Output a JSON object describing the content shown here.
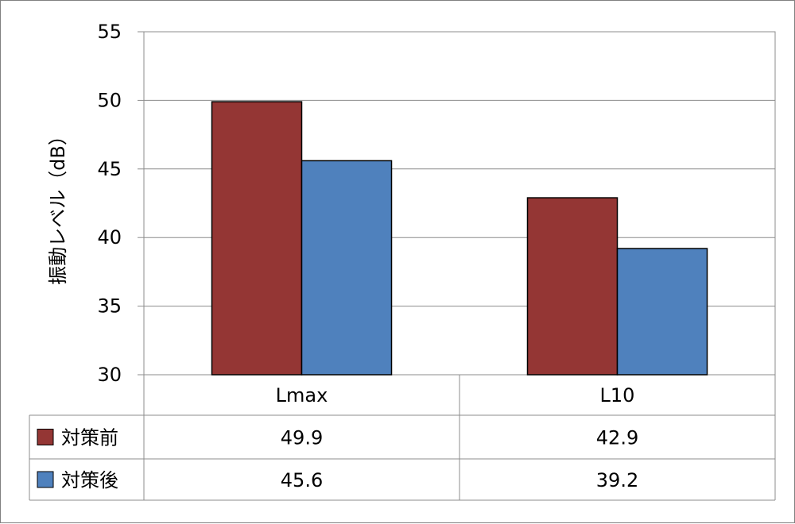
{
  "chart_data": {
    "type": "bar",
    "ylabel": "振動レベル（dB）",
    "ylim": [
      30,
      55
    ],
    "yticks": [
      30,
      35,
      40,
      45,
      50,
      55
    ],
    "categories": [
      "Lmax",
      "L10"
    ],
    "series": [
      {
        "name": "対策前",
        "values": [
          49.9,
          42.9
        ],
        "color": "#943634"
      },
      {
        "name": "対策後",
        "values": [
          45.6,
          39.2
        ],
        "color": "#4f81bd"
      }
    ],
    "data_table": true,
    "grid": true
  }
}
